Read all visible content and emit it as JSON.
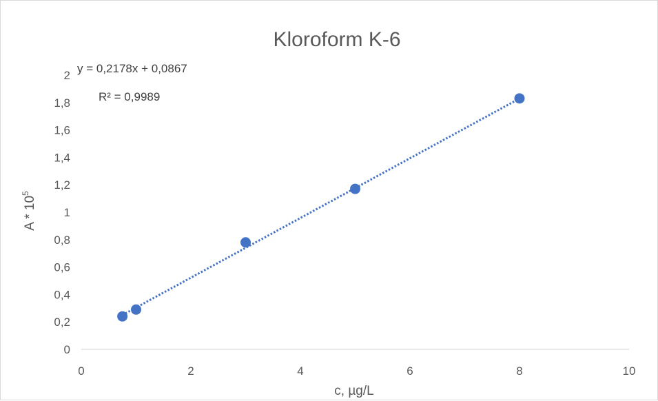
{
  "chart_data": {
    "type": "scatter",
    "title": "Kloroform K-6",
    "xlabel": "c, µg/L",
    "ylabel_main": "A * 10",
    "ylabel_sup": "5",
    "xlim": [
      0,
      10
    ],
    "ylim": [
      0,
      2
    ],
    "x_ticks": [
      "0",
      "2",
      "4",
      "6",
      "8",
      "10"
    ],
    "y_ticks": [
      "0",
      "0,2",
      "0,4",
      "0,6",
      "0,8",
      "1",
      "1,2",
      "1,4",
      "1,6",
      "1,8",
      "2"
    ],
    "grid": false,
    "legend": "none",
    "point_color": "#4472c4",
    "trendline_color": "#4472c4",
    "series": [
      {
        "x": [
          0.75,
          1,
          3,
          5,
          8
        ],
        "y": [
          0.24,
          0.29,
          0.78,
          1.17,
          1.83
        ]
      }
    ],
    "trendline": {
      "type": "linear",
      "slope": 0.2178,
      "intercept": 0.0867,
      "x_range": [
        0.75,
        8
      ]
    },
    "equation_text": "y = 0,2178x + 0,0867",
    "r2_text": "R² = 0,9989"
  }
}
